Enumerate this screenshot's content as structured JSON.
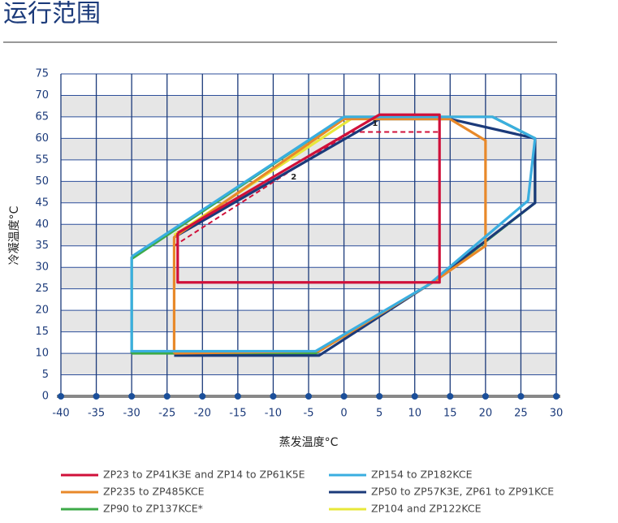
{
  "chart_data": {
    "type": "line",
    "title": "运行范围",
    "x_label": "蒸发温度°C",
    "y_label": "冷凝温度°C",
    "xlim": [
      -40,
      30
    ],
    "ylim": [
      0,
      75
    ],
    "xticks": [
      -40,
      -35,
      -30,
      -25,
      -20,
      -15,
      -10,
      -5,
      0,
      5,
      10,
      15,
      20,
      25,
      30
    ],
    "yticks": [
      0,
      5,
      10,
      15,
      20,
      25,
      30,
      35,
      40,
      45,
      50,
      55,
      60,
      65,
      70,
      75
    ],
    "grid": true,
    "series": [
      {
        "name": "ZP23 to ZP41K3E and ZP14 to ZP61K5E",
        "color": "#d0103a",
        "x": [
          -23.5,
          -23.5,
          13.5,
          13.5,
          5,
          -23.5
        ],
        "y": [
          38,
          26.5,
          26.5,
          65.5,
          65.5,
          38
        ]
      },
      {
        "name": "ZP154 to ZP182KCE",
        "color": "#3aaee0",
        "x": [
          -30,
          0,
          21,
          27,
          26,
          12,
          -4,
          -30,
          -30
        ],
        "y": [
          32.5,
          65,
          65,
          60,
          45.5,
          26,
          10.5,
          10.5,
          32.5
        ]
      },
      {
        "name": "ZP235 to ZP485KCE",
        "color": "#e8892a",
        "x": [
          -24,
          -24,
          0,
          15,
          20,
          20,
          13,
          -3.5,
          -24
        ],
        "y": [
          10,
          37,
          64.5,
          64.5,
          59.5,
          35,
          27,
          10.5,
          10
        ]
      },
      {
        "name": "ZP50 to ZP57K3E, ZP61 to ZP91KCE",
        "color": "#1b3a7a",
        "x": [
          -24,
          -3.5,
          12,
          27,
          27,
          15,
          5,
          -24
        ],
        "y": [
          9.5,
          9.5,
          26,
          45,
          60,
          64.5,
          64.5,
          37
        ]
      },
      {
        "name": "ZP90 to ZP137KCE*",
        "color": "#3daa48",
        "x": [
          -30,
          -30,
          0,
          21,
          27,
          27,
          13,
          -4,
          -30
        ],
        "y": [
          10,
          32,
          65,
          65,
          60,
          45,
          27,
          10,
          10
        ]
      },
      {
        "name": "ZP104 and ZP122KCE",
        "color": "#e8e83a",
        "x": [
          -24,
          1,
          14
        ],
        "y": [
          37.5,
          64.5,
          64.5
        ]
      },
      {
        "color": "#d0103a",
        "dashed": true,
        "x": [
          -24,
          1,
          13.5
        ],
        "y": [
          35,
          61.5,
          61.5
        ]
      }
    ],
    "annotations": [
      {
        "text": "1",
        "x": 4,
        "y": 63.5
      },
      {
        "text": "2",
        "x": -7.5,
        "y": 51
      }
    ]
  }
}
